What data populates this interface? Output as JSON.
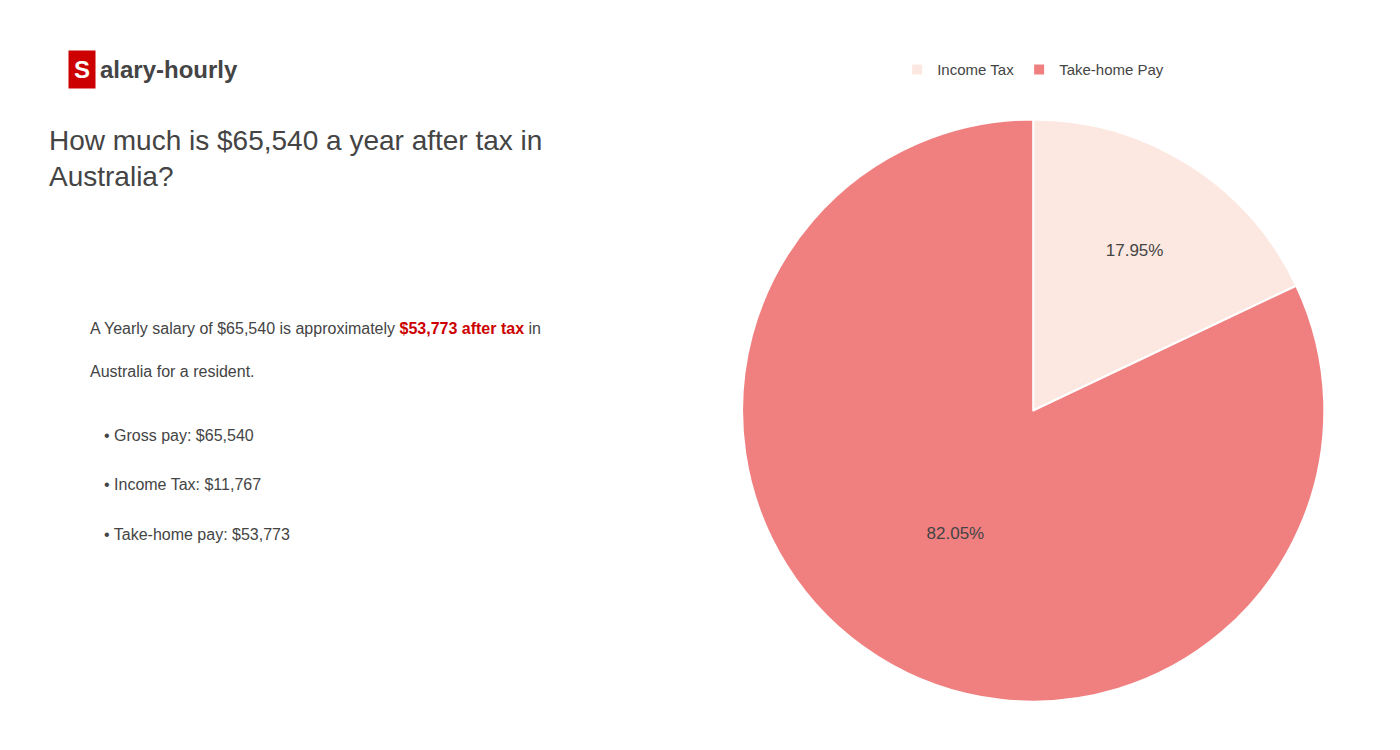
{
  "chart_data": {
    "type": "pie",
    "title": "How much is $65,540 a year after tax in\nAustralia?",
    "categories": [
      "Income Tax",
      "Take-home Pay"
    ],
    "values": [
      17.95,
      82.05
    ],
    "value_labels": [
      "17.95%",
      "82.05%"
    ],
    "colors": [
      "#fce8e0",
      "#f08080"
    ],
    "data_labels": true,
    "legend": "top",
    "annotations": [
      {
        "text": "S",
        "color": "#cc0000"
      },
      {
        "text": "alary-hourly"
      },
      {
        "text": "A Yearly salary of $65,540 is approximately "
      },
      {
        "text": "$53,773 after tax",
        "color": "#cc0000"
      },
      {
        "text": " in"
      },
      {
        "text": "Australia for a resident."
      },
      {
        "text": "• Gross pay: $65,540"
      },
      {
        "text": "• Income Tax: $11,767"
      },
      {
        "text": "• Take-home pay: $53,773"
      }
    ]
  }
}
